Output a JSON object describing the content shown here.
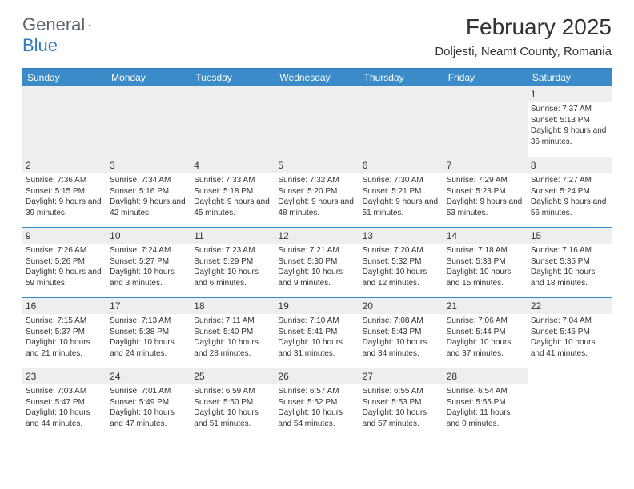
{
  "logo": {
    "text1": "General",
    "text2": "Blue"
  },
  "title": "February 2025",
  "location": "Doljesti, Neamt County, Romania",
  "colors": {
    "header_bg": "#3b8bc9",
    "header_text": "#ffffff",
    "line": "#2d7bc0",
    "daynum_bg": "#eeeeee",
    "text": "#333333",
    "logo_gray": "#5a6570",
    "logo_blue": "#2d7bc0"
  },
  "dayHeaders": [
    "Sunday",
    "Monday",
    "Tuesday",
    "Wednesday",
    "Thursday",
    "Friday",
    "Saturday"
  ],
  "days": [
    {
      "n": "1",
      "sunrise": "Sunrise: 7:37 AM",
      "sunset": "Sunset: 5:13 PM",
      "daylight": "Daylight: 9 hours and 36 minutes."
    },
    {
      "n": "2",
      "sunrise": "Sunrise: 7:36 AM",
      "sunset": "Sunset: 5:15 PM",
      "daylight": "Daylight: 9 hours and 39 minutes."
    },
    {
      "n": "3",
      "sunrise": "Sunrise: 7:34 AM",
      "sunset": "Sunset: 5:16 PM",
      "daylight": "Daylight: 9 hours and 42 minutes."
    },
    {
      "n": "4",
      "sunrise": "Sunrise: 7:33 AM",
      "sunset": "Sunset: 5:18 PM",
      "daylight": "Daylight: 9 hours and 45 minutes."
    },
    {
      "n": "5",
      "sunrise": "Sunrise: 7:32 AM",
      "sunset": "Sunset: 5:20 PM",
      "daylight": "Daylight: 9 hours and 48 minutes."
    },
    {
      "n": "6",
      "sunrise": "Sunrise: 7:30 AM",
      "sunset": "Sunset: 5:21 PM",
      "daylight": "Daylight: 9 hours and 51 minutes."
    },
    {
      "n": "7",
      "sunrise": "Sunrise: 7:29 AM",
      "sunset": "Sunset: 5:23 PM",
      "daylight": "Daylight: 9 hours and 53 minutes."
    },
    {
      "n": "8",
      "sunrise": "Sunrise: 7:27 AM",
      "sunset": "Sunset: 5:24 PM",
      "daylight": "Daylight: 9 hours and 56 minutes."
    },
    {
      "n": "9",
      "sunrise": "Sunrise: 7:26 AM",
      "sunset": "Sunset: 5:26 PM",
      "daylight": "Daylight: 9 hours and 59 minutes."
    },
    {
      "n": "10",
      "sunrise": "Sunrise: 7:24 AM",
      "sunset": "Sunset: 5:27 PM",
      "daylight": "Daylight: 10 hours and 3 minutes."
    },
    {
      "n": "11",
      "sunrise": "Sunrise: 7:23 AM",
      "sunset": "Sunset: 5:29 PM",
      "daylight": "Daylight: 10 hours and 6 minutes."
    },
    {
      "n": "12",
      "sunrise": "Sunrise: 7:21 AM",
      "sunset": "Sunset: 5:30 PM",
      "daylight": "Daylight: 10 hours and 9 minutes."
    },
    {
      "n": "13",
      "sunrise": "Sunrise: 7:20 AM",
      "sunset": "Sunset: 5:32 PM",
      "daylight": "Daylight: 10 hours and 12 minutes."
    },
    {
      "n": "14",
      "sunrise": "Sunrise: 7:18 AM",
      "sunset": "Sunset: 5:33 PM",
      "daylight": "Daylight: 10 hours and 15 minutes."
    },
    {
      "n": "15",
      "sunrise": "Sunrise: 7:16 AM",
      "sunset": "Sunset: 5:35 PM",
      "daylight": "Daylight: 10 hours and 18 minutes."
    },
    {
      "n": "16",
      "sunrise": "Sunrise: 7:15 AM",
      "sunset": "Sunset: 5:37 PM",
      "daylight": "Daylight: 10 hours and 21 minutes."
    },
    {
      "n": "17",
      "sunrise": "Sunrise: 7:13 AM",
      "sunset": "Sunset: 5:38 PM",
      "daylight": "Daylight: 10 hours and 24 minutes."
    },
    {
      "n": "18",
      "sunrise": "Sunrise: 7:11 AM",
      "sunset": "Sunset: 5:40 PM",
      "daylight": "Daylight: 10 hours and 28 minutes."
    },
    {
      "n": "19",
      "sunrise": "Sunrise: 7:10 AM",
      "sunset": "Sunset: 5:41 PM",
      "daylight": "Daylight: 10 hours and 31 minutes."
    },
    {
      "n": "20",
      "sunrise": "Sunrise: 7:08 AM",
      "sunset": "Sunset: 5:43 PM",
      "daylight": "Daylight: 10 hours and 34 minutes."
    },
    {
      "n": "21",
      "sunrise": "Sunrise: 7:06 AM",
      "sunset": "Sunset: 5:44 PM",
      "daylight": "Daylight: 10 hours and 37 minutes."
    },
    {
      "n": "22",
      "sunrise": "Sunrise: 7:04 AM",
      "sunset": "Sunset: 5:46 PM",
      "daylight": "Daylight: 10 hours and 41 minutes."
    },
    {
      "n": "23",
      "sunrise": "Sunrise: 7:03 AM",
      "sunset": "Sunset: 5:47 PM",
      "daylight": "Daylight: 10 hours and 44 minutes."
    },
    {
      "n": "24",
      "sunrise": "Sunrise: 7:01 AM",
      "sunset": "Sunset: 5:49 PM",
      "daylight": "Daylight: 10 hours and 47 minutes."
    },
    {
      "n": "25",
      "sunrise": "Sunrise: 6:59 AM",
      "sunset": "Sunset: 5:50 PM",
      "daylight": "Daylight: 10 hours and 51 minutes."
    },
    {
      "n": "26",
      "sunrise": "Sunrise: 6:57 AM",
      "sunset": "Sunset: 5:52 PM",
      "daylight": "Daylight: 10 hours and 54 minutes."
    },
    {
      "n": "27",
      "sunrise": "Sunrise: 6:55 AM",
      "sunset": "Sunset: 5:53 PM",
      "daylight": "Daylight: 10 hours and 57 minutes."
    },
    {
      "n": "28",
      "sunrise": "Sunrise: 6:54 AM",
      "sunset": "Sunset: 5:55 PM",
      "daylight": "Daylight: 11 hours and 0 minutes."
    }
  ]
}
